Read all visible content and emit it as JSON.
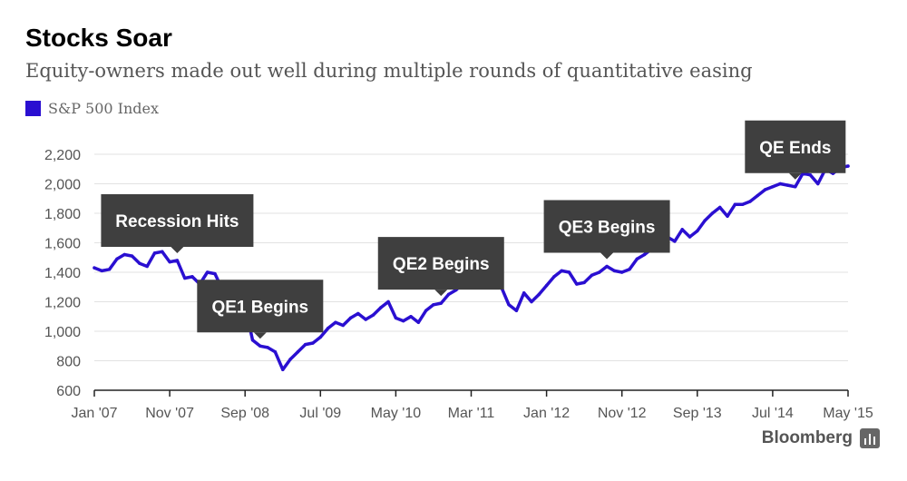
{
  "header": {
    "title": "Stocks Soar",
    "subtitle": "Equity-owners made out well during multiple rounds of quantitative easing"
  },
  "legend": {
    "label": "S&P 500 Index",
    "color": "#2a0fd1"
  },
  "footer": {
    "brand": "Bloomberg",
    "brand_icon": "bar-chart-icon"
  },
  "colors": {
    "line": "#2a0fd1",
    "annotation_bg": "#3f3f3f",
    "annotation_text": "#ffffff",
    "grid": "#e2e2e2",
    "axis": "#222222",
    "tick_text": "#555555"
  },
  "chart_data": {
    "type": "line",
    "title": "Stocks Soar",
    "subtitle": "Equity-owners made out well during multiple rounds of quantitative easing",
    "xlabel": "",
    "ylabel": "",
    "ylim": [
      600,
      2200
    ],
    "yticks": [
      600,
      800,
      1000,
      1200,
      1400,
      1600,
      1800,
      2000,
      2200
    ],
    "ytick_labels": [
      "600",
      "800",
      "1,000",
      "1,200",
      "1,400",
      "1,600",
      "1,800",
      "2,000",
      "2,200"
    ],
    "xlim": [
      "2007-01",
      "2015-05"
    ],
    "xticks": [
      "2007-01",
      "2007-11",
      "2008-09",
      "2009-07",
      "2010-05",
      "2011-03",
      "2012-01",
      "2012-11",
      "2013-09",
      "2014-07",
      "2015-05"
    ],
    "xtick_labels": [
      "Jan '07",
      "Nov '07",
      "Sep '08",
      "Jul '09",
      "May '10",
      "Mar '11",
      "Jan '12",
      "Nov '12",
      "Sep '13",
      "Jul '14",
      "May '15"
    ],
    "grid": true,
    "legend_position": "top-left",
    "series": [
      {
        "name": "S&P 500 Index",
        "color": "#2a0fd1",
        "x": [
          "2007-01",
          "2007-02",
          "2007-03",
          "2007-04",
          "2007-05",
          "2007-06",
          "2007-07",
          "2007-08",
          "2007-09",
          "2007-10",
          "2007-11",
          "2007-12",
          "2008-01",
          "2008-02",
          "2008-03",
          "2008-04",
          "2008-05",
          "2008-06",
          "2008-07",
          "2008-08",
          "2008-09",
          "2008-10",
          "2008-11",
          "2008-12",
          "2009-01",
          "2009-02",
          "2009-03",
          "2009-04",
          "2009-05",
          "2009-06",
          "2009-07",
          "2009-08",
          "2009-09",
          "2009-10",
          "2009-11",
          "2009-12",
          "2010-01",
          "2010-02",
          "2010-03",
          "2010-04",
          "2010-05",
          "2010-06",
          "2010-07",
          "2010-08",
          "2010-09",
          "2010-10",
          "2010-11",
          "2010-12",
          "2011-01",
          "2011-02",
          "2011-03",
          "2011-04",
          "2011-05",
          "2011-06",
          "2011-07",
          "2011-08",
          "2011-09",
          "2011-10",
          "2011-11",
          "2011-12",
          "2012-01",
          "2012-02",
          "2012-03",
          "2012-04",
          "2012-05",
          "2012-06",
          "2012-07",
          "2012-08",
          "2012-09",
          "2012-10",
          "2012-11",
          "2012-12",
          "2013-01",
          "2013-02",
          "2013-03",
          "2013-04",
          "2013-05",
          "2013-06",
          "2013-07",
          "2013-08",
          "2013-09",
          "2013-10",
          "2013-11",
          "2013-12",
          "2014-01",
          "2014-02",
          "2014-03",
          "2014-04",
          "2014-05",
          "2014-06",
          "2014-07",
          "2014-08",
          "2014-09",
          "2014-10",
          "2014-11",
          "2014-12",
          "2015-01",
          "2015-02",
          "2015-03",
          "2015-04",
          "2015-05"
        ],
        "values": [
          1430,
          1410,
          1420,
          1490,
          1520,
          1510,
          1460,
          1440,
          1530,
          1540,
          1470,
          1480,
          1360,
          1370,
          1320,
          1400,
          1390,
          1280,
          1260,
          1290,
          1170,
          940,
          900,
          890,
          860,
          740,
          810,
          860,
          910,
          920,
          960,
          1020,
          1060,
          1040,
          1090,
          1120,
          1080,
          1110,
          1160,
          1200,
          1090,
          1070,
          1100,
          1060,
          1140,
          1180,
          1190,
          1250,
          1280,
          1330,
          1320,
          1360,
          1340,
          1300,
          1300,
          1180,
          1140,
          1260,
          1200,
          1250,
          1310,
          1370,
          1410,
          1400,
          1320,
          1330,
          1380,
          1400,
          1440,
          1410,
          1400,
          1420,
          1490,
          1520,
          1560,
          1590,
          1640,
          1610,
          1690,
          1640,
          1680,
          1750,
          1800,
          1840,
          1780,
          1860,
          1860,
          1880,
          1920,
          1960,
          1980,
          2000,
          1990,
          1980,
          2070,
          2060,
          2000,
          2100,
          2070,
          2110,
          2120
        ]
      }
    ],
    "annotations": [
      {
        "label": "Recession Hits",
        "x": "2007-12",
        "value": 1480
      },
      {
        "label": "QE1 Begins",
        "x": "2008-11",
        "value": 900
      },
      {
        "label": "QE2 Begins",
        "x": "2010-11",
        "value": 1190
      },
      {
        "label": "QE3 Begins",
        "x": "2012-09",
        "value": 1440
      },
      {
        "label": "QE Ends",
        "x": "2014-10",
        "value": 1980
      }
    ]
  }
}
